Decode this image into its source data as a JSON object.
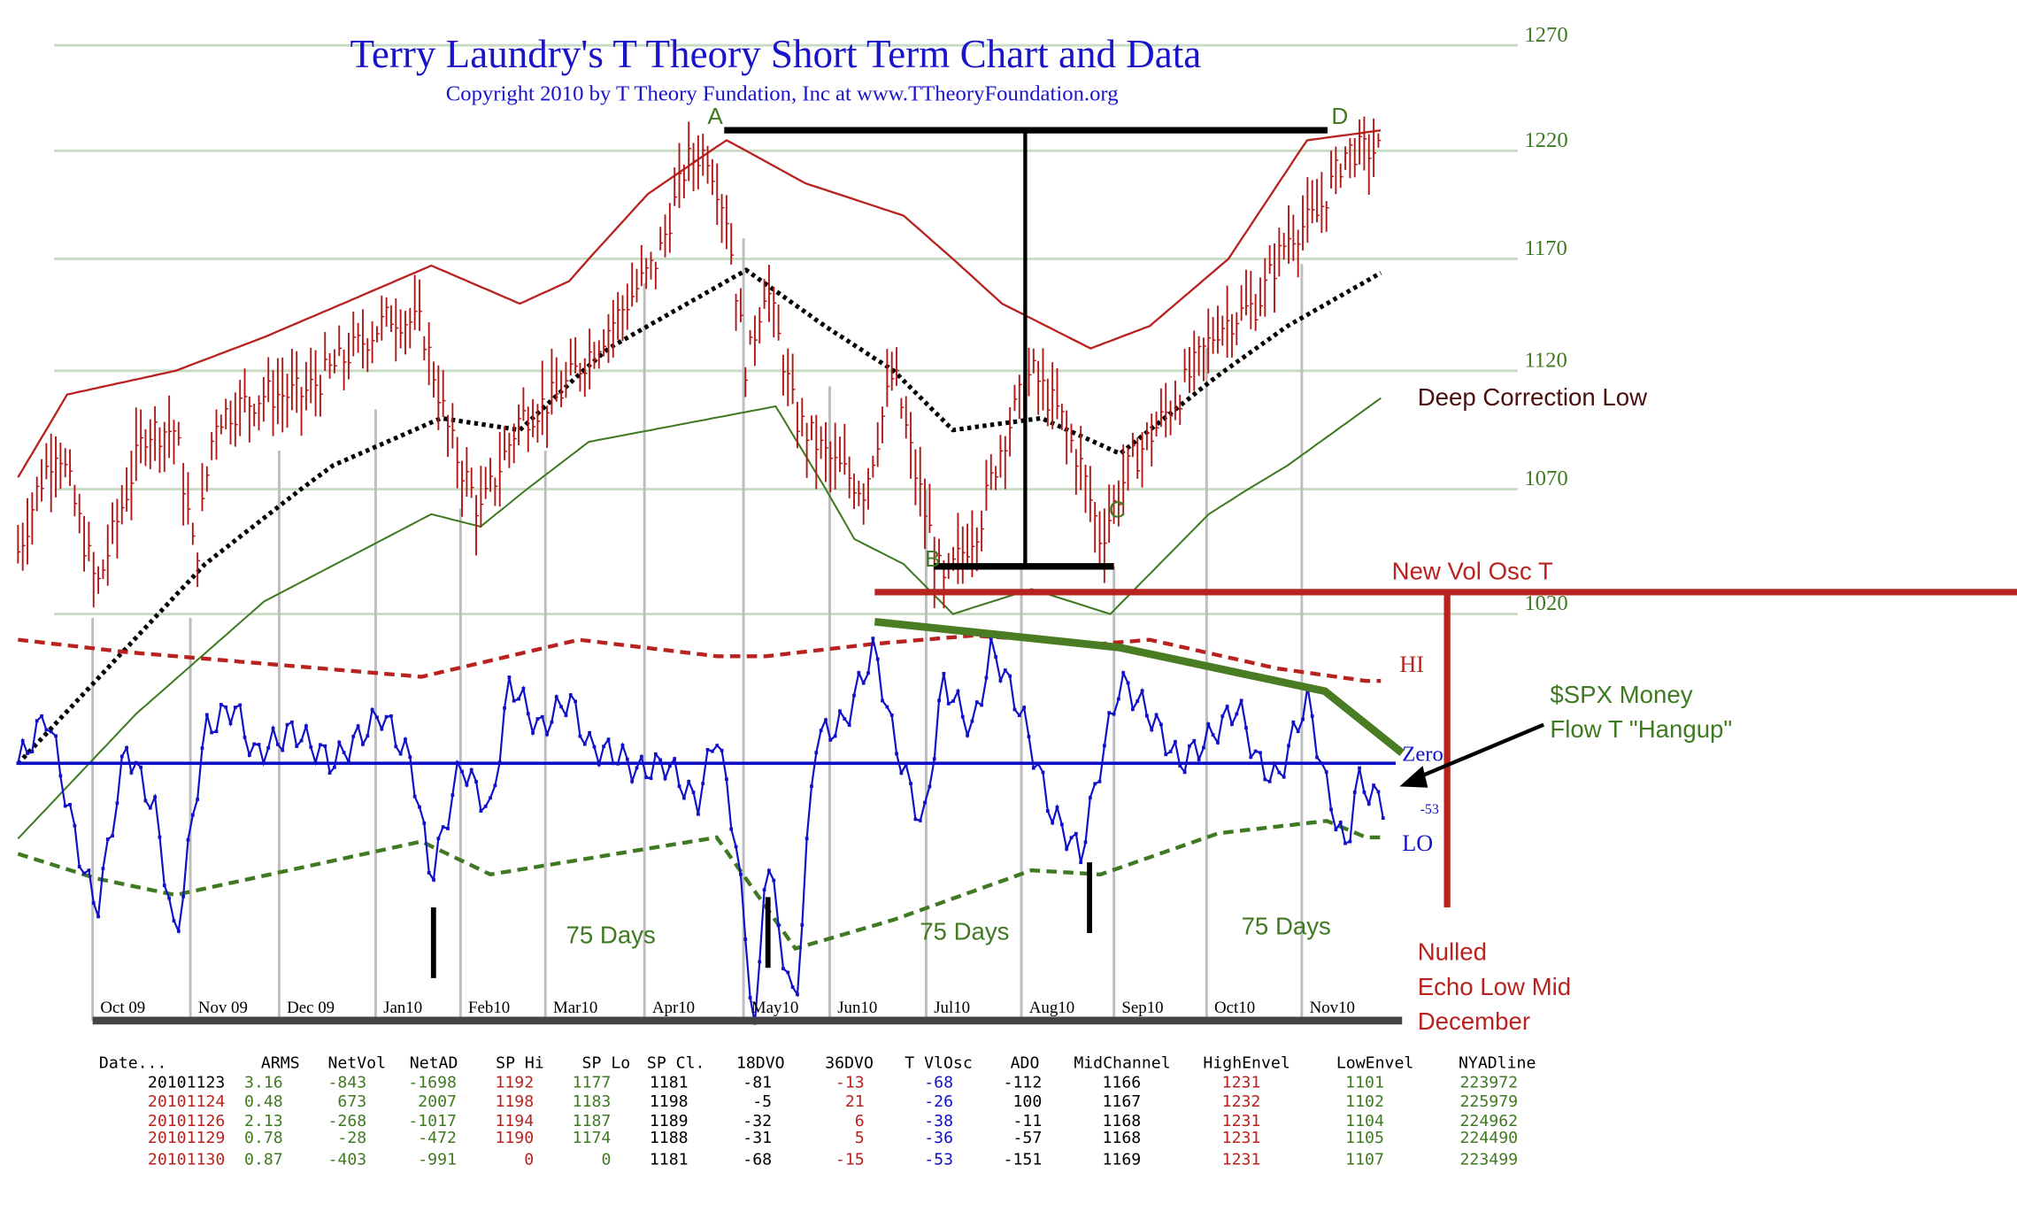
{
  "chart_data": {
    "type": "bar",
    "title": "Terry Laundry's T Theory Short Term Chart and Data",
    "subtitle": "Copyright 2010 by T Theory Fundation, Inc at www.TTheoryFoundation.org",
    "y_ticks": [
      1270,
      1220,
      1170,
      1120,
      1070,
      1020
    ],
    "ylim": [
      1020,
      1270
    ],
    "grid": true,
    "x_ticks": [
      "Oct 09",
      "Nov 09",
      "Dec 09",
      "Jan10",
      "Feb10",
      "Mar10",
      "Apr10",
      "May10",
      "Jun10",
      "Jul10",
      "Aug10",
      "Sep10",
      "Oct10",
      "Nov10"
    ],
    "price_close_approx": {
      "x_month_index": [
        0,
        0.2,
        0.4,
        0.8,
        1.3,
        1.6,
        1.8,
        2.0,
        2.5,
        2.9,
        3.3,
        3.8,
        4.1,
        4.4,
        4.7,
        5.1,
        5.5,
        6.1,
        6.5,
        6.8,
        7.0,
        7.2,
        7.4,
        7.6,
        7.9,
        8.3,
        8.6,
        8.9,
        9.1,
        9.4,
        9.8,
        10.0,
        10.3,
        10.6,
        10.8,
        11.0,
        11.3,
        11.8,
        12.2,
        12.6,
        12.9,
        13.2,
        13.5
      ],
      "values": [
        1045,
        1070,
        1090,
        1030,
        1095,
        1095,
        1040,
        1100,
        1110,
        1110,
        1125,
        1145,
        1140,
        1090,
        1060,
        1100,
        1110,
        1145,
        1170,
        1215,
        1220,
        1190,
        1120,
        1160,
        1100,
        1080,
        1070,
        1120,
        1080,
        1030,
        1060,
        1090,
        1120,
        1100,
        1080,
        1050,
        1080,
        1110,
        1140,
        1150,
        1180,
        1190,
        1220
      ]
    },
    "series": [
      {
        "name": "High Envelope",
        "values_at_month": [
          [
            0,
            1075
          ],
          [
            0.5,
            1110
          ],
          [
            1.6,
            1120
          ],
          [
            2.5,
            1135
          ],
          [
            3.3,
            1150
          ],
          [
            4.2,
            1167
          ],
          [
            5.1,
            1150
          ],
          [
            5.6,
            1160
          ],
          [
            6.4,
            1200
          ],
          [
            7.2,
            1225
          ],
          [
            8.0,
            1205
          ],
          [
            9.0,
            1190
          ],
          [
            10.0,
            1150
          ],
          [
            10.9,
            1130
          ],
          [
            11.5,
            1140
          ],
          [
            12.3,
            1170
          ],
          [
            13.1,
            1225
          ],
          [
            13.9,
            1230
          ]
        ]
      },
      {
        "name": "Mid Channel",
        "values_at_month": [
          [
            0,
            960
          ],
          [
            1.9,
            1040
          ],
          [
            3.2,
            1080
          ],
          [
            4.3,
            1100
          ],
          [
            5.1,
            1095
          ],
          [
            6.0,
            1130
          ],
          [
            7.4,
            1165
          ],
          [
            8.2,
            1140
          ],
          [
            8.9,
            1120
          ],
          [
            9.5,
            1095
          ],
          [
            10.4,
            1100
          ],
          [
            11.2,
            1085
          ],
          [
            12.1,
            1115
          ],
          [
            12.9,
            1140
          ],
          [
            13.9,
            1165
          ]
        ]
      },
      {
        "name": "Low Envelope",
        "values_at_month": [
          [
            0,
            930
          ],
          [
            1.2,
            980
          ],
          [
            2.5,
            1025
          ],
          [
            4.2,
            1060
          ],
          [
            4.7,
            1055
          ],
          [
            5.8,
            1090
          ],
          [
            7.7,
            1105
          ],
          [
            8.5,
            1050
          ],
          [
            9.0,
            1040
          ],
          [
            9.5,
            1020
          ],
          [
            10.3,
            1030
          ],
          [
            11.1,
            1020
          ],
          [
            12.1,
            1060
          ],
          [
            12.9,
            1080
          ],
          [
            13.9,
            1110
          ]
        ]
      },
      {
        "name": "T VlOsc",
        "values_at_month": [
          [
            0,
            0
          ],
          [
            0.3,
            60
          ],
          [
            0.6,
            -100
          ],
          [
            0.8,
            -180
          ],
          [
            1.1,
            20
          ],
          [
            1.4,
            -60
          ],
          [
            1.6,
            -220
          ],
          [
            1.9,
            40
          ],
          [
            2.2,
            70
          ],
          [
            2.4,
            10
          ],
          [
            2.8,
            40
          ],
          [
            3.2,
            0
          ],
          [
            3.7,
            60
          ],
          [
            4.0,
            0
          ],
          [
            4.2,
            -140
          ],
          [
            4.5,
            0
          ],
          [
            4.8,
            -60
          ],
          [
            5.0,
            100
          ],
          [
            5.3,
            40
          ],
          [
            5.6,
            80
          ],
          [
            5.8,
            20
          ],
          [
            6.1,
            10
          ],
          [
            6.3,
            -10
          ],
          [
            6.6,
            0
          ],
          [
            6.9,
            -50
          ],
          [
            7.1,
            40
          ],
          [
            7.3,
            -100
          ],
          [
            7.5,
            -340
          ],
          [
            7.6,
            -100
          ],
          [
            7.8,
            -250
          ],
          [
            7.9,
            -300
          ],
          [
            8.1,
            30
          ],
          [
            8.4,
            50
          ],
          [
            8.7,
            140
          ],
          [
            8.9,
            30
          ],
          [
            9.2,
            -80
          ],
          [
            9.4,
            100
          ],
          [
            9.7,
            40
          ],
          [
            9.9,
            140
          ],
          [
            10.2,
            60
          ],
          [
            10.5,
            -60
          ],
          [
            10.8,
            -110
          ],
          [
            11.0,
            0
          ],
          [
            11.2,
            100
          ],
          [
            11.5,
            60
          ],
          [
            11.8,
            0
          ],
          [
            12.1,
            30
          ],
          [
            12.4,
            70
          ],
          [
            12.6,
            0
          ],
          [
            12.8,
            -20
          ],
          [
            13.1,
            80
          ],
          [
            13.3,
            -30
          ],
          [
            13.5,
            -110
          ],
          [
            13.6,
            -20
          ],
          [
            13.9,
            -53
          ]
        ]
      },
      {
        "name": "HI",
        "values_at_month": [
          [
            0,
            150
          ],
          [
            1.1,
            135
          ],
          [
            4.1,
            105
          ],
          [
            5.7,
            150
          ],
          [
            7.1,
            130
          ],
          [
            7.6,
            130
          ],
          [
            8.7,
            145
          ],
          [
            9.7,
            155
          ],
          [
            11.0,
            145
          ],
          [
            11.5,
            150
          ],
          [
            12.8,
            115
          ],
          [
            13.7,
            100
          ]
        ]
      },
      {
        "name": "LO",
        "values_at_month": [
          [
            0,
            -110
          ],
          [
            0.8,
            -140
          ],
          [
            1.6,
            -160
          ],
          [
            4.1,
            -95
          ],
          [
            4.8,
            -135
          ],
          [
            7.1,
            -90
          ],
          [
            7.9,
            -225
          ],
          [
            8.9,
            -190
          ],
          [
            10.3,
            -130
          ],
          [
            11.0,
            -135
          ],
          [
            12.2,
            -85
          ],
          [
            13.3,
            -70
          ],
          [
            13.7,
            -90
          ]
        ]
      }
    ],
    "labels": {
      "y_ticks_text": [
        "1270",
        "1220",
        "1170",
        "1120",
        "1070",
        "1020"
      ],
      "point_a": "A",
      "point_b": "B",
      "point_c": "C",
      "point_d": "D",
      "deep_correction": "Deep Correction Low",
      "new_vol_osc": "New Vol Osc  T",
      "hi": "HI",
      "zero": "Zero",
      "last_osc": "-53",
      "lo": "LO",
      "money_flow_1": "$SPX Money",
      "money_flow_2": "Flow T \"Hangup\"",
      "days_1": "75 Days",
      "days_2": "75 Days",
      "days_3": "75 Days",
      "nulled_1": "Nulled",
      "nulled_2": "Echo Low Mid",
      "nulled_3": "December"
    }
  },
  "table": {
    "headers": [
      "Date...",
      "ARMS",
      "NetVol",
      "NetAD",
      "SP Hi",
      "SP Lo",
      "SP Cl.",
      "18DVO",
      "36DVO",
      "T VlOsc",
      "ADO",
      "MidChannel",
      "HighEnvel",
      "LowEnvel",
      "NYADline"
    ],
    "rows": [
      [
        "20101123",
        "3.16",
        "-843",
        "-1698",
        "1192",
        "1177",
        "1181",
        "-81",
        "-13",
        "-68",
        "-112",
        "1166",
        "1231",
        "1101",
        "223972"
      ],
      [
        "20101124",
        "0.48",
        "673",
        "2007",
        "1198",
        "1183",
        "1198",
        "-5",
        "21",
        "-26",
        "100",
        "1167",
        "1232",
        "1102",
        "225979"
      ],
      [
        "20101126",
        "2.13",
        "-268",
        "-1017",
        "1194",
        "1187",
        "1189",
        "-32",
        "6",
        "-38",
        "-11",
        "1168",
        "1231",
        "1104",
        "224962"
      ],
      [
        "20101129",
        "0.78",
        "-28",
        "-472",
        "1190",
        "1174",
        "1188",
        "-31",
        "5",
        "-36",
        "-57",
        "1168",
        "1231",
        "1105",
        "224490"
      ],
      [
        "20101130",
        "0.87",
        "-403",
        "-991",
        "0",
        "0",
        "1181",
        "-68",
        "-15",
        "-53",
        "-151",
        "1169",
        "1231",
        "1107",
        "223499"
      ]
    ]
  },
  "colors": {
    "red": "#b8231f",
    "green": "#3f7a22",
    "blue": "#1010c8",
    "grid": "#c8dcc4",
    "grey": "#bdbdbd"
  }
}
